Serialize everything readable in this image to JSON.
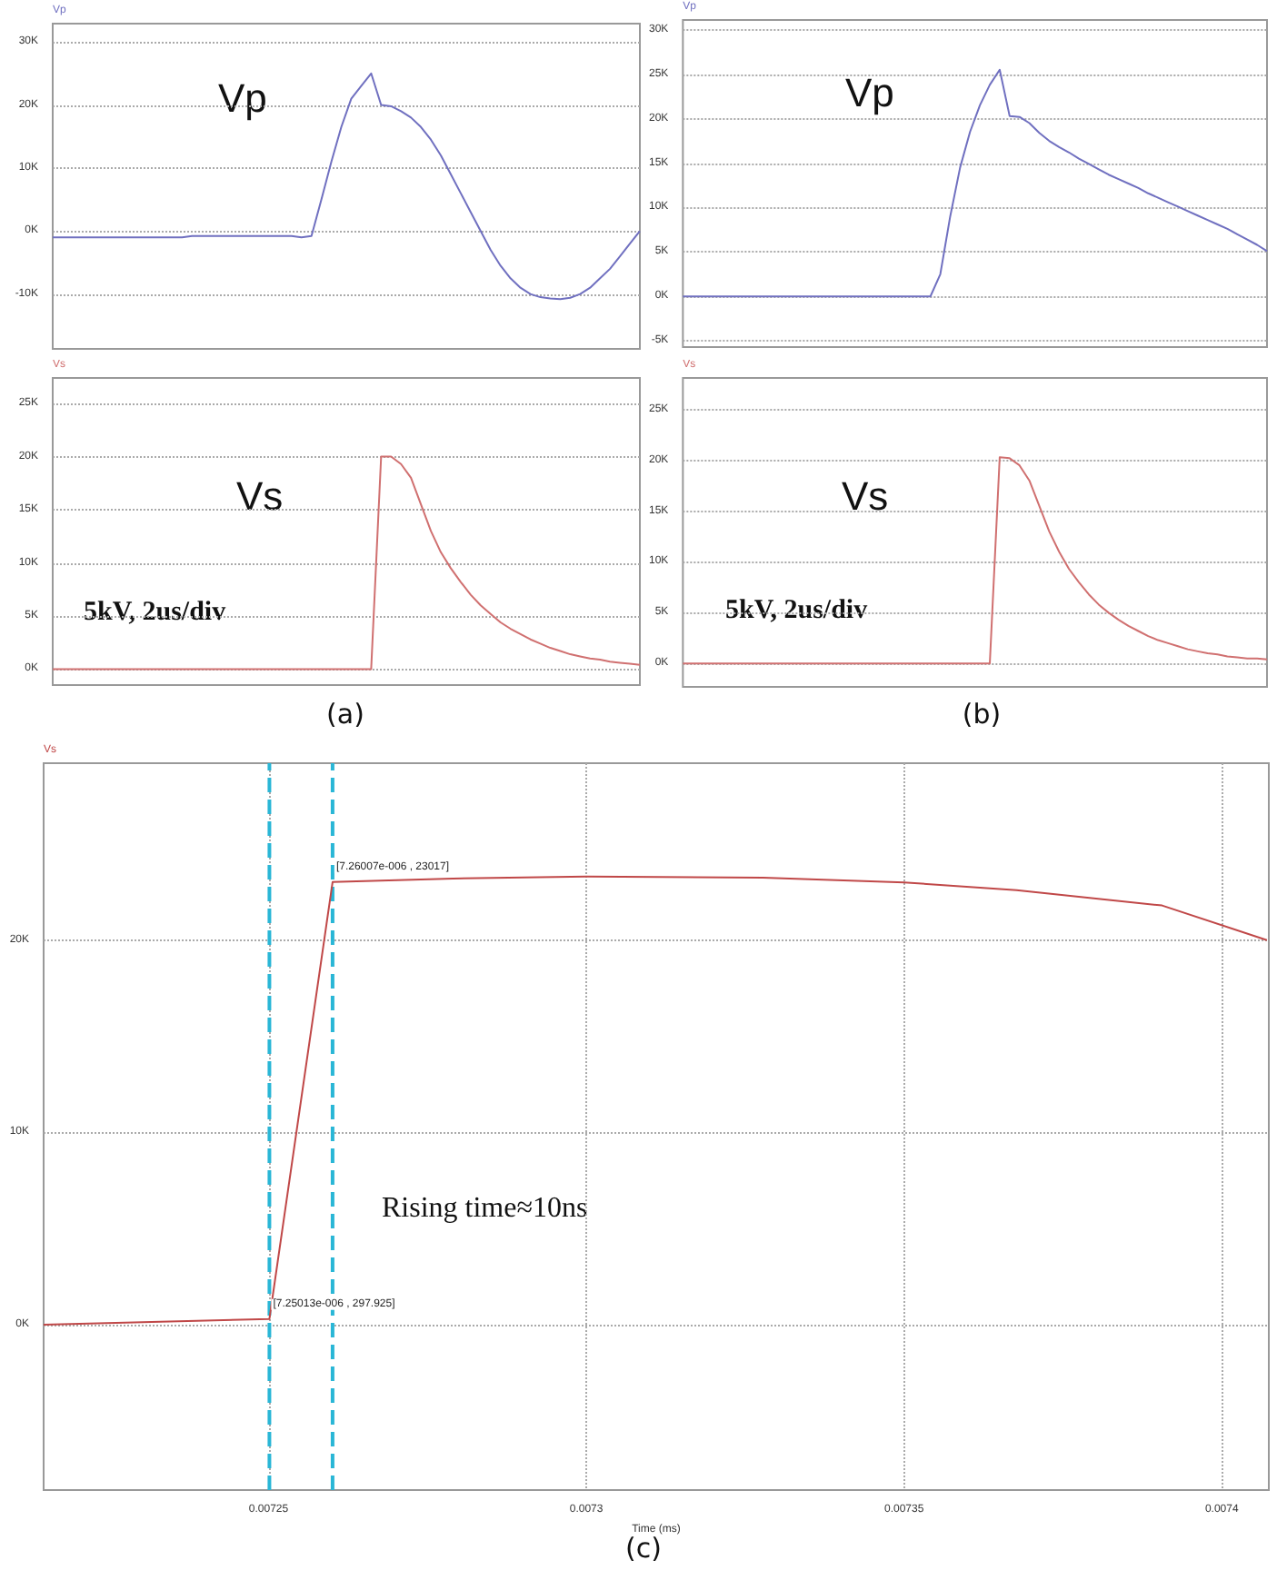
{
  "chart_data": [
    {
      "type": "line",
      "ylabel": "Vp",
      "categories": [
        null,
        null,
        null,
        null,
        null,
        null,
        null,
        null,
        null,
        null,
        null,
        null,
        null,
        null,
        null,
        null,
        null,
        null,
        null,
        null,
        null,
        null,
        null,
        null,
        null,
        null,
        null,
        null,
        null,
        null,
        null,
        null,
        null,
        null,
        null,
        null,
        null,
        null,
        null,
        null,
        null,
        null,
        null,
        null,
        null,
        null,
        null,
        null,
        null,
        null,
        null,
        null,
        null,
        null,
        null,
        null,
        null,
        null,
        null,
        null
      ],
      "series": [
        {
          "name": "Vp",
          "color": "#7070c0",
          "values": [
            -1000,
            -1000,
            -1000,
            -1000,
            -1000,
            -1000,
            -1000,
            -1000,
            -1000,
            -1000,
            -1000,
            -1000,
            -1000,
            -1000,
            -800,
            -800,
            -800,
            -800,
            -800,
            -800,
            -800,
            -800,
            -800,
            -800,
            -800,
            -1000,
            -800,
            5000,
            11000,
            16500,
            21000,
            23000,
            25000,
            20000,
            19800,
            19000,
            18000,
            16500,
            14500,
            12000,
            9000,
            6000,
            3000,
            0,
            -3000,
            -5500,
            -7500,
            -9000,
            -10000,
            -10500,
            -10700,
            -10800,
            -10600,
            -10000,
            -9000,
            -7500,
            -6000,
            -4000,
            -2000,
            0
          ]
        }
      ],
      "ylim": [
        -18700,
        32900
      ],
      "yticks": [
        {
          "value": -10000,
          "label": "-10K"
        },
        {
          "value": 0,
          "label": "0K"
        },
        {
          "value": 10000,
          "label": "10K"
        },
        {
          "value": 20000,
          "label": "20K"
        },
        {
          "value": 30000,
          "label": "30K"
        }
      ],
      "grid": "y",
      "tick_labels": "y"
    },
    {
      "type": "line",
      "ylabel": "Vs",
      "categories": [
        null,
        null,
        null,
        null,
        null,
        null,
        null,
        null,
        null,
        null,
        null,
        null,
        null,
        null,
        null,
        null,
        null,
        null,
        null,
        null,
        null,
        null,
        null,
        null,
        null,
        null,
        null,
        null,
        null,
        null,
        null,
        null,
        null,
        null,
        null,
        null,
        null,
        null,
        null,
        null,
        null,
        null,
        null,
        null,
        null,
        null,
        null,
        null,
        null,
        null,
        null,
        null,
        null,
        null,
        null,
        null,
        null,
        null,
        null,
        null
      ],
      "series": [
        {
          "name": "Vs",
          "color": "#d07070",
          "values": [
            0,
            0,
            0,
            0,
            0,
            0,
            0,
            0,
            0,
            0,
            0,
            0,
            0,
            0,
            0,
            0,
            0,
            0,
            0,
            0,
            0,
            0,
            0,
            0,
            0,
            0,
            0,
            0,
            0,
            0,
            0,
            0,
            0,
            20000,
            20000,
            19300,
            18000,
            15500,
            13000,
            11000,
            9500,
            8200,
            7000,
            6000,
            5200,
            4400,
            3800,
            3300,
            2800,
            2400,
            2000,
            1700,
            1400,
            1200,
            1000,
            900,
            700,
            600,
            500,
            400
          ]
        }
      ],
      "ylim": [
        -1500,
        27400
      ],
      "yticks": [
        {
          "value": 0,
          "label": "0K"
        },
        {
          "value": 5000,
          "label": "5K"
        },
        {
          "value": 10000,
          "label": "10K"
        },
        {
          "value": 15000,
          "label": "15K"
        },
        {
          "value": 20000,
          "label": "20K"
        },
        {
          "value": 25000,
          "label": "25K"
        }
      ],
      "grid": "y",
      "tick_labels": "y",
      "annotations": [
        "5kV, 2us/div",
        "(a)"
      ]
    },
    {
      "type": "line",
      "ylabel": "Vp",
      "categories": [
        null,
        null,
        null,
        null,
        null,
        null,
        null,
        null,
        null,
        null,
        null,
        null,
        null,
        null,
        null,
        null,
        null,
        null,
        null,
        null,
        null,
        null,
        null,
        null,
        null,
        null,
        null,
        null,
        null,
        null,
        null,
        null,
        null,
        null,
        null,
        null,
        null,
        null,
        null,
        null,
        null,
        null,
        null,
        null,
        null,
        null,
        null,
        null,
        null,
        null,
        null,
        null,
        null,
        null,
        null,
        null,
        null,
        null,
        null,
        null
      ],
      "series": [
        {
          "name": "Vp",
          "color": "#7070c0",
          "values": [
            0,
            0,
            0,
            0,
            0,
            0,
            0,
            0,
            0,
            0,
            0,
            0,
            0,
            0,
            0,
            0,
            0,
            0,
            0,
            0,
            0,
            0,
            0,
            0,
            0,
            0,
            2500,
            9000,
            14500,
            18500,
            21500,
            23800,
            25500,
            20300,
            20200,
            19500,
            18400,
            17500,
            16800,
            16200,
            15500,
            14900,
            14300,
            13700,
            13200,
            12700,
            12200,
            11600,
            11100,
            10600,
            10100,
            9600,
            9100,
            8600,
            8100,
            7600,
            7000,
            6400,
            5800,
            5100
          ]
        }
      ],
      "ylim": [
        -5700,
        31100
      ],
      "yticks": [
        {
          "value": -5000,
          "label": "-5K"
        },
        {
          "value": 0,
          "label": "0K"
        },
        {
          "value": 5000,
          "label": "5K"
        },
        {
          "value": 10000,
          "label": "10K"
        },
        {
          "value": 15000,
          "label": "15K"
        },
        {
          "value": 20000,
          "label": "20K"
        },
        {
          "value": 25000,
          "label": "25K"
        },
        {
          "value": 30000,
          "label": "30K"
        }
      ],
      "grid": "y",
      "tick_labels": "y"
    },
    {
      "type": "line",
      "ylabel": "Vs",
      "categories": [
        null,
        null,
        null,
        null,
        null,
        null,
        null,
        null,
        null,
        null,
        null,
        null,
        null,
        null,
        null,
        null,
        null,
        null,
        null,
        null,
        null,
        null,
        null,
        null,
        null,
        null,
        null,
        null,
        null,
        null,
        null,
        null,
        null,
        null,
        null,
        null,
        null,
        null,
        null,
        null,
        null,
        null,
        null,
        null,
        null,
        null,
        null,
        null,
        null,
        null,
        null,
        null,
        null,
        null,
        null,
        null,
        null,
        null,
        null,
        null
      ],
      "series": [
        {
          "name": "Vs",
          "color": "#d07070",
          "values": [
            0,
            0,
            0,
            0,
            0,
            0,
            0,
            0,
            0,
            0,
            0,
            0,
            0,
            0,
            0,
            0,
            0,
            0,
            0,
            0,
            0,
            0,
            0,
            0,
            0,
            0,
            0,
            0,
            0,
            0,
            0,
            0,
            20300,
            20200,
            19500,
            18000,
            15500,
            13000,
            11000,
            9300,
            8000,
            6800,
            5800,
            5000,
            4300,
            3700,
            3200,
            2700,
            2300,
            2000,
            1700,
            1400,
            1200,
            1000,
            900,
            700,
            600,
            500,
            500,
            400
          ]
        }
      ],
      "ylim": [
        -2300,
        28100
      ],
      "yticks": [
        {
          "value": 0,
          "label": "0K"
        },
        {
          "value": 5000,
          "label": "5K"
        },
        {
          "value": 10000,
          "label": "10K"
        },
        {
          "value": 15000,
          "label": "15K"
        },
        {
          "value": 20000,
          "label": "20K"
        },
        {
          "value": 25000,
          "label": "25K"
        }
      ],
      "grid": "y",
      "tick_labels": "y",
      "annotations": [
        "5kV, 2us/div",
        "(b)"
      ]
    },
    {
      "type": "line",
      "ylabel": "Vs",
      "xlabel": "Time (ms)",
      "series": [
        {
          "color": "#c04848",
          "x": [
            0.0072146,
            0.00725013,
            0.00726007,
            0.007279,
            0.0073,
            0.0073278,
            0.00735,
            0.0073677,
            0.0073906,
            0.0074071
          ],
          "values": [
            0,
            297.925,
            23017,
            23200,
            23300,
            23250,
            23000,
            22600,
            21800,
            20000
          ]
        }
      ],
      "xlim": [
        0.0072146,
        0.0074074
      ],
      "xticks": [
        0.00725,
        0.0073,
        0.00735,
        0.0074
      ],
      "ylim": [
        -8600,
        29200
      ],
      "yticks": [
        {
          "value": 0,
          "label": "0K"
        },
        {
          "value": 10000,
          "label": "10K"
        },
        {
          "value": 20000,
          "label": "20K"
        }
      ],
      "grid": true,
      "ref_lines": [
        {
          "axis": "x",
          "value": 0.00725013,
          "color": "#29b6d6",
          "line_style": "dashed"
        },
        {
          "axis": "x",
          "value": 0.00726007,
          "color": "#29b6d6",
          "line_style": "dashed"
        }
      ],
      "annotations": [
        {
          "text": "[7.25013e-006 , 297.925]",
          "x": 0.00725013,
          "y": 297.925
        },
        {
          "text": "[7.26007e-006 , 23017]",
          "x": 0.00726007,
          "y": 23017
        },
        "Rising time≈10ns",
        "(c)"
      ]
    }
  ]
}
